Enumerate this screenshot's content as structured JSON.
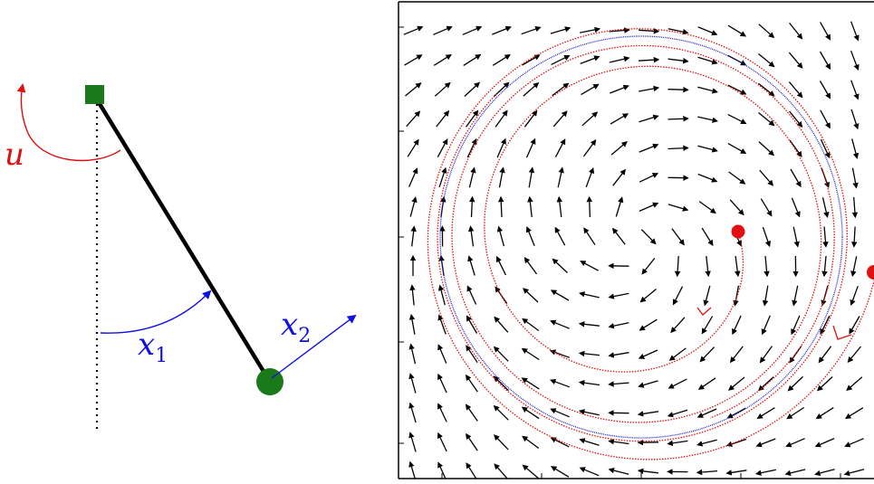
{
  "pendulum": {
    "control_label": "u",
    "angle_label": "x",
    "angle_subscript": "1",
    "velocity_label": "x",
    "velocity_subscript": "2"
  },
  "phase_portrait": {
    "center": [
      0,
      0
    ],
    "x_range": [
      -2.4,
      2.4
    ],
    "y_range": [
      -2.4,
      2.4
    ],
    "limit_cycle_radius": 1.95,
    "colors": {
      "pendulum": "#000000",
      "pivot": "#1a7a1a",
      "bob": "#1a7a1a",
      "control": "#e01010",
      "state": "#1010e0",
      "limit_cycle": "#2020d0",
      "trajectory": "#e01010",
      "vector_field": "#000000"
    }
  }
}
